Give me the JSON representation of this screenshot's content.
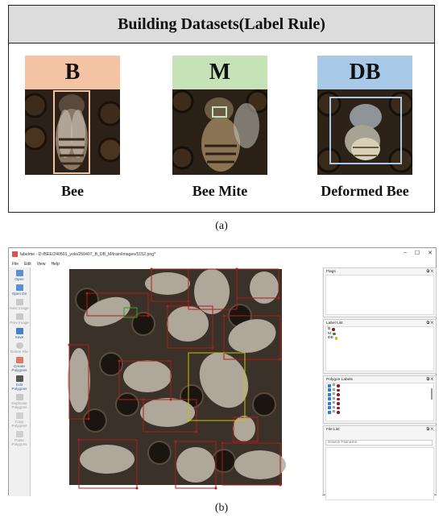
{
  "panel_a": {
    "title": "Building Datasets(Label Rule)",
    "cards": [
      {
        "badge": "B",
        "caption": "Bee",
        "badge_color": "#f4c3a4",
        "box_color": "#f4c3a4"
      },
      {
        "badge": "M",
        "caption": "Bee Mite",
        "badge_color": "#c6e2b7",
        "box_color": "#c6e2b7"
      },
      {
        "badge": "DB",
        "caption": "Deformed Bee",
        "badge_color": "#a9c9e8",
        "box_color": "#a9c9e8"
      }
    ],
    "figure_label": "(a)"
  },
  "panel_b": {
    "window_title": "labelme - D:/BEE/240501_yolo/250407_B_DB_M/train/images/5152.png*",
    "window_controls": [
      "–",
      "☐",
      "✕"
    ],
    "menu": [
      "File",
      "Edit",
      "View",
      "Help"
    ],
    "tools": [
      {
        "label": "Open",
        "icon": "folder-open-icon",
        "enabled": true
      },
      {
        "label": "Open Dir",
        "icon": "folder-icon",
        "enabled": true
      },
      {
        "label": "Next Image",
        "icon": "arrow-right-icon",
        "enabled": false
      },
      {
        "label": "Prev Image",
        "icon": "arrow-left-icon",
        "enabled": false
      },
      {
        "label": "Save",
        "icon": "save-icon",
        "enabled": true
      },
      {
        "label": "Delete File",
        "icon": "delete-icon",
        "enabled": false
      },
      {
        "label": "Create Polygons",
        "icon": "polygon-icon",
        "enabled": true
      },
      {
        "label": "Edit Polygons",
        "icon": "edit-icon",
        "enabled": true
      },
      {
        "label": "Duplicate Polygons",
        "icon": "duplicate-icon",
        "enabled": false
      },
      {
        "label": "Copy Polygons",
        "icon": "copy-icon",
        "enabled": false
      },
      {
        "label": "Paste Polygons",
        "icon": "paste-icon",
        "enabled": false
      }
    ],
    "docks": {
      "flags": {
        "title": "Flags"
      },
      "label_list": {
        "title": "Label List",
        "items": [
          {
            "name": "B",
            "color": "#8b1a1a"
          },
          {
            "name": "M",
            "color": "#2a8a2a"
          },
          {
            "name": "DB",
            "color": "#b8b820"
          }
        ]
      },
      "polygon_labels": {
        "title": "Polygon Labels",
        "items": [
          "B",
          "B",
          "B",
          "B",
          "B",
          "B",
          "B"
        ]
      },
      "file_list": {
        "title": "File List",
        "search_placeholder": "Search Filename"
      }
    },
    "figure_label": "(b)"
  }
}
